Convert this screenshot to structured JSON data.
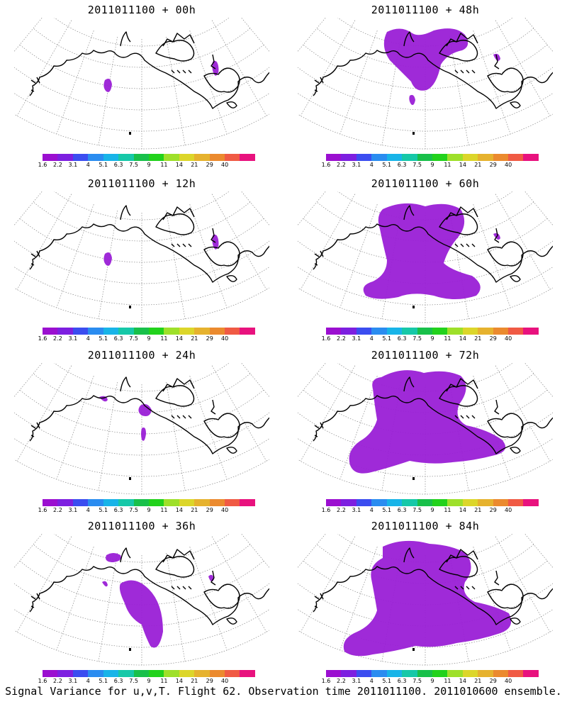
{
  "colorbar": {
    "labels": [
      "1.6",
      "2.2",
      "3.1",
      "4",
      "5.1",
      "6.3",
      "7.5",
      "9",
      "11",
      "14",
      "21",
      "29",
      "40"
    ],
    "colors": [
      "#9b0fd0",
      "#7d1fe0",
      "#3b4df0",
      "#2a8cf0",
      "#18b4e8",
      "#16c8a8",
      "#18c04a",
      "#22d21c",
      "#9ee02a",
      "#dcd62a",
      "#e6b22e",
      "#eb8a2e",
      "#f05a44",
      "#e8127e"
    ]
  },
  "field_color": "#9a1fd6",
  "panels": [
    {
      "title": "2011011100 + 00h",
      "coverage": 0
    },
    {
      "title": "2011011100 + 48h",
      "coverage": 3
    },
    {
      "title": "2011011100 + 12h",
      "coverage": 0
    },
    {
      "title": "2011011100 + 60h",
      "coverage": 4
    },
    {
      "title": "2011011100 + 24h",
      "coverage": 1
    },
    {
      "title": "2011011100 + 72h",
      "coverage": 5
    },
    {
      "title": "2011011100 + 36h",
      "coverage": 2
    },
    {
      "title": "2011011100 + 84h",
      "coverage": 6
    }
  ],
  "caption": "Signal Variance for u,v,T. Flight 62. Observation time 2011011100. 2011010600 ensemble."
}
